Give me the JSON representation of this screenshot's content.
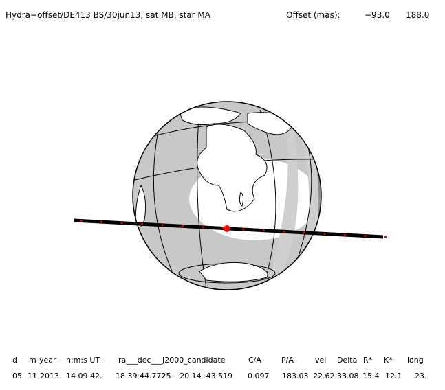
{
  "header": {
    "title": "Hydra−offset/DE413 BS/30jun13, sat MB, star MA",
    "offset_label": "Offset (mas):",
    "offset_values": [
      "−93.0",
      "188.0"
    ]
  },
  "table": {
    "columns": [
      "d",
      "m",
      "year",
      "h:m:s UT",
      "ra___dec___J2000_candidate",
      "C/A",
      "P/A",
      "vel",
      "Delta",
      "R*",
      "K*",
      "long"
    ],
    "rows": [
      [
        "05",
        "11",
        "2013",
        "14 09 42.",
        "18 39 44.7725 −20 14  43.519",
        "0.097",
        "183.03",
        "22.62",
        "33.08",
        "15.4",
        "12.1",
        "23."
      ]
    ]
  }
}
